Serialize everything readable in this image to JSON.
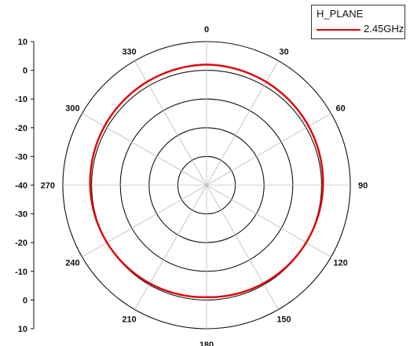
{
  "chart_data": {
    "type": "polar",
    "title": "",
    "legend": {
      "title": "H_PLANE",
      "placement": "top-right",
      "entries": [
        "2.45GHz"
      ]
    },
    "angle_ticks": [
      "0",
      "30",
      "60",
      "90",
      "120",
      "150",
      "180",
      "210",
      "240",
      "270",
      "300",
      "330"
    ],
    "radial_axis": {
      "range": [
        -40,
        10
      ],
      "ticks_upper": [
        "10",
        "0",
        "-10",
        "-20",
        "-30",
        "-40"
      ],
      "ticks_lower": [
        "-30",
        "-20",
        "-10",
        "0",
        "10"
      ]
    },
    "grid": true,
    "series": [
      {
        "name": "2.45GHz",
        "color": "#e00000",
        "angles": [
          0,
          30,
          60,
          90,
          120,
          150,
          180,
          210,
          240,
          270,
          300,
          330
        ],
        "values": [
          2,
          1.5,
          1,
          0.5,
          0,
          -0.5,
          -1,
          -0.5,
          0,
          0.5,
          1,
          1.5
        ]
      }
    ]
  }
}
